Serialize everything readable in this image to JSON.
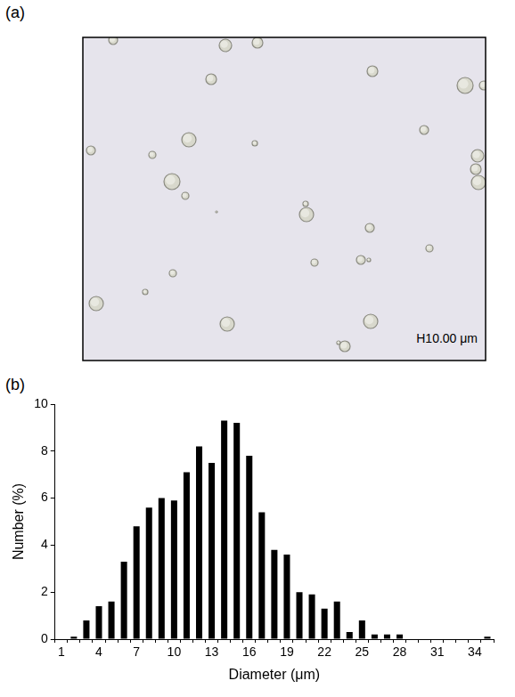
{
  "panel_labels": [
    "(a)",
    "(b)"
  ],
  "micrograph": {
    "scale_bar_label": "H10.00 μm"
  },
  "chart_data": {
    "type": "bar",
    "x_label": "Diameter (μm)",
    "y_label": "Number (%)",
    "categories": [
      "1",
      null,
      null,
      "4",
      null,
      null,
      "7",
      null,
      null,
      "10",
      null,
      null,
      "13",
      null,
      null,
      "16",
      null,
      null,
      "19",
      null,
      null,
      "22",
      null,
      null,
      "25",
      null,
      null,
      "28",
      null,
      null,
      "31",
      null,
      null,
      "34",
      null
    ],
    "values": [
      0,
      0.1,
      0.8,
      1.4,
      1.6,
      3.3,
      4.8,
      5.6,
      6.0,
      5.9,
      7.1,
      8.2,
      7.5,
      9.3,
      9.2,
      7.8,
      5.4,
      3.8,
      3.6,
      2.0,
      1.9,
      1.3,
      1.6,
      0.3,
      0.8,
      0.2,
      0.2,
      0.2,
      0,
      0,
      0,
      0,
      0,
      0,
      0.1
    ],
    "color": "#000000",
    "ylim": [
      0,
      10
    ],
    "yticks": [
      0,
      2,
      4,
      6,
      8,
      10
    ],
    "grid": false
  }
}
